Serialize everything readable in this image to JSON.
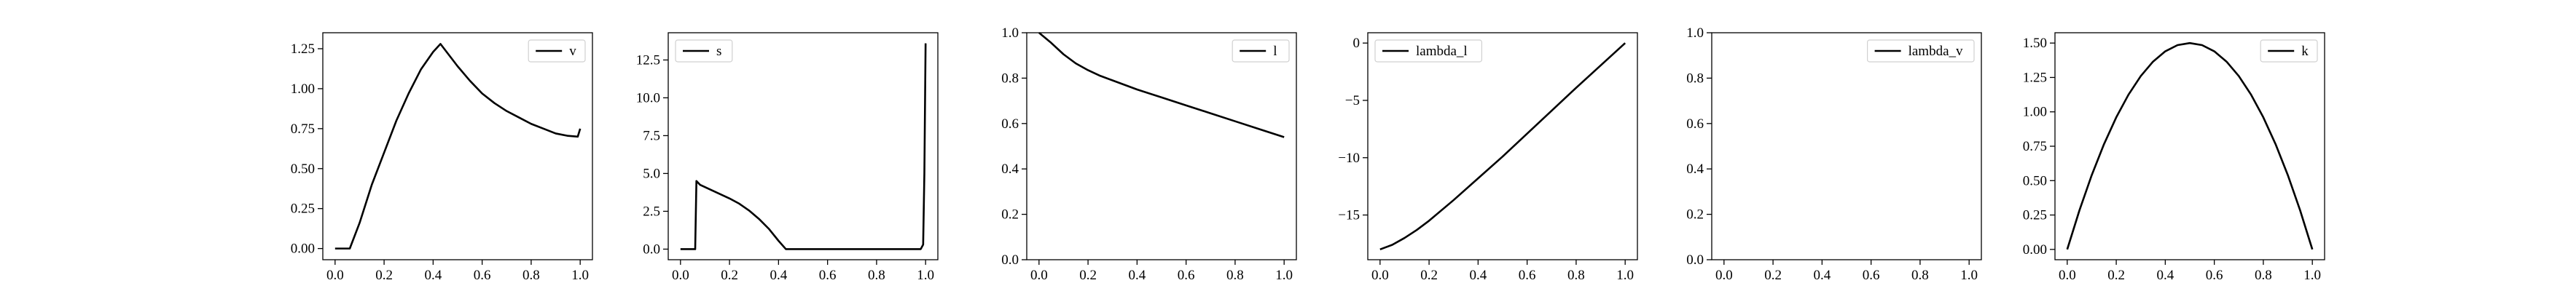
{
  "chart_data": [
    {
      "type": "line",
      "xlim": [
        -0.05,
        1.05
      ],
      "ylim": [
        -0.07,
        1.35
      ],
      "xticks": [
        {
          "v": 0,
          "label": "0.0"
        },
        {
          "v": 0.2,
          "label": "0.2"
        },
        {
          "v": 0.4,
          "label": "0.4"
        },
        {
          "v": 0.6,
          "label": "0.6"
        },
        {
          "v": 0.8,
          "label": "0.8"
        },
        {
          "v": 1.0,
          "label": "1.0"
        }
      ],
      "yticks": [
        {
          "v": 0,
          "label": "0.00"
        },
        {
          "v": 0.25,
          "label": "0.25"
        },
        {
          "v": 0.5,
          "label": "0.50"
        },
        {
          "v": 0.75,
          "label": "0.75"
        },
        {
          "v": 1.0,
          "label": "1.00"
        },
        {
          "v": 1.25,
          "label": "1.25"
        }
      ],
      "legend_placement": "top-right",
      "grid": false,
      "series": [
        {
          "name": "v",
          "color": "#000000",
          "x": [
            0.0,
            0.06,
            0.1,
            0.15,
            0.2,
            0.25,
            0.3,
            0.35,
            0.4,
            0.43,
            0.5,
            0.55,
            0.6,
            0.65,
            0.7,
            0.75,
            0.8,
            0.85,
            0.9,
            0.95,
            0.99,
            1.0
          ],
          "y": [
            0.0,
            0.0,
            0.16,
            0.4,
            0.6,
            0.8,
            0.97,
            1.12,
            1.23,
            1.28,
            1.14,
            1.05,
            0.97,
            0.91,
            0.86,
            0.82,
            0.78,
            0.75,
            0.72,
            0.705,
            0.7,
            0.75
          ]
        }
      ]
    },
    {
      "type": "line",
      "xlim": [
        -0.05,
        1.05
      ],
      "ylim": [
        -0.7,
        14.3
      ],
      "xticks": [
        {
          "v": 0,
          "label": "0.0"
        },
        {
          "v": 0.2,
          "label": "0.2"
        },
        {
          "v": 0.4,
          "label": "0.4"
        },
        {
          "v": 0.6,
          "label": "0.6"
        },
        {
          "v": 0.8,
          "label": "0.8"
        },
        {
          "v": 1.0,
          "label": "1.0"
        }
      ],
      "yticks": [
        {
          "v": 0,
          "label": "0.0"
        },
        {
          "v": 2.5,
          "label": "2.5"
        },
        {
          "v": 5,
          "label": "5.0"
        },
        {
          "v": 7.5,
          "label": "7.5"
        },
        {
          "v": 10,
          "label": "10.0"
        },
        {
          "v": 12.5,
          "label": "12.5"
        }
      ],
      "legend_placement": "top-left",
      "grid": false,
      "series": [
        {
          "name": "s",
          "color": "#000000",
          "x": [
            0.0,
            0.06,
            0.065,
            0.08,
            0.12,
            0.16,
            0.2,
            0.24,
            0.28,
            0.32,
            0.36,
            0.4,
            0.43,
            0.5,
            0.6,
            0.7,
            0.8,
            0.9,
            0.98,
            0.99,
            0.995,
            1.0
          ],
          "y": [
            0.0,
            0.0,
            4.5,
            4.25,
            3.95,
            3.65,
            3.35,
            3.0,
            2.55,
            2.0,
            1.35,
            0.55,
            0.0,
            0.0,
            0.0,
            0.0,
            0.0,
            0.0,
            0.0,
            0.3,
            5.0,
            13.6
          ]
        }
      ]
    },
    {
      "type": "line",
      "xlim": [
        -0.05,
        1.05
      ],
      "ylim": [
        0.0,
        1.0
      ],
      "xticks": [
        {
          "v": 0,
          "label": "0.0"
        },
        {
          "v": 0.2,
          "label": "0.2"
        },
        {
          "v": 0.4,
          "label": "0.4"
        },
        {
          "v": 0.6,
          "label": "0.6"
        },
        {
          "v": 0.8,
          "label": "0.8"
        },
        {
          "v": 1.0,
          "label": "1.0"
        }
      ],
      "yticks": [
        {
          "v": 0,
          "label": "0.0"
        },
        {
          "v": 0.2,
          "label": "0.2"
        },
        {
          "v": 0.4,
          "label": "0.4"
        },
        {
          "v": 0.6,
          "label": "0.6"
        },
        {
          "v": 0.8,
          "label": "0.8"
        },
        {
          "v": 1.0,
          "label": "1.0"
        }
      ],
      "legend_placement": "top-right",
      "grid": false,
      "series": [
        {
          "name": "l",
          "color": "#000000",
          "x": [
            0.0,
            0.05,
            0.1,
            0.15,
            0.2,
            0.25,
            0.3,
            0.35,
            0.4,
            0.5,
            0.6,
            0.7,
            0.8,
            0.9,
            1.0
          ],
          "y": [
            1.0,
            0.955,
            0.905,
            0.865,
            0.835,
            0.81,
            0.79,
            0.77,
            0.75,
            0.715,
            0.68,
            0.645,
            0.61,
            0.575,
            0.54
          ]
        }
      ]
    },
    {
      "type": "line",
      "xlim": [
        -0.05,
        1.05
      ],
      "ylim": [
        -18.9,
        0.9
      ],
      "xticks": [
        {
          "v": 0,
          "label": "0.0"
        },
        {
          "v": 0.2,
          "label": "0.2"
        },
        {
          "v": 0.4,
          "label": "0.4"
        },
        {
          "v": 0.6,
          "label": "0.6"
        },
        {
          "v": 0.8,
          "label": "0.8"
        },
        {
          "v": 1.0,
          "label": "1.0"
        }
      ],
      "yticks": [
        {
          "v": -15,
          "label": "−15"
        },
        {
          "v": -10,
          "label": "−10"
        },
        {
          "v": -5,
          "label": "−5"
        },
        {
          "v": 0,
          "label": "0"
        }
      ],
      "legend_placement": "top-left",
      "grid": false,
      "series": [
        {
          "name": "lambda_l",
          "color": "#000000",
          "x": [
            0.0,
            0.05,
            0.1,
            0.15,
            0.2,
            0.3,
            0.4,
            0.5,
            0.6,
            0.7,
            0.8,
            0.9,
            1.0
          ],
          "y": [
            -18.0,
            -17.6,
            -17.0,
            -16.3,
            -15.5,
            -13.7,
            -11.8,
            -9.9,
            -7.9,
            -5.9,
            -3.9,
            -1.95,
            0.0
          ]
        }
      ]
    },
    {
      "type": "line",
      "xlim": [
        -0.05,
        1.05
      ],
      "ylim": [
        0.0,
        1.0
      ],
      "xticks": [
        {
          "v": 0,
          "label": "0.0"
        },
        {
          "v": 0.2,
          "label": "0.2"
        },
        {
          "v": 0.4,
          "label": "0.4"
        },
        {
          "v": 0.6,
          "label": "0.6"
        },
        {
          "v": 0.8,
          "label": "0.8"
        },
        {
          "v": 1.0,
          "label": "1.0"
        }
      ],
      "yticks": [
        {
          "v": 0,
          "label": "0.0"
        },
        {
          "v": 0.2,
          "label": "0.2"
        },
        {
          "v": 0.4,
          "label": "0.4"
        },
        {
          "v": 0.6,
          "label": "0.6"
        },
        {
          "v": 0.8,
          "label": "0.8"
        },
        {
          "v": 1.0,
          "label": "1.0"
        }
      ],
      "legend_placement": "top-right",
      "grid": false,
      "series": [
        {
          "name": "lambda_v",
          "color": "#000000",
          "x": [],
          "y": []
        }
      ]
    },
    {
      "type": "line",
      "xlim": [
        -0.05,
        1.05
      ],
      "ylim": [
        -0.075,
        1.575
      ],
      "xticks": [
        {
          "v": 0,
          "label": "0.0"
        },
        {
          "v": 0.2,
          "label": "0.2"
        },
        {
          "v": 0.4,
          "label": "0.4"
        },
        {
          "v": 0.6,
          "label": "0.6"
        },
        {
          "v": 0.8,
          "label": "0.8"
        },
        {
          "v": 1.0,
          "label": "1.0"
        }
      ],
      "yticks": [
        {
          "v": 0,
          "label": "0.00"
        },
        {
          "v": 0.25,
          "label": "0.25"
        },
        {
          "v": 0.5,
          "label": "0.50"
        },
        {
          "v": 0.75,
          "label": "0.75"
        },
        {
          "v": 1.0,
          "label": "1.00"
        },
        {
          "v": 1.25,
          "label": "1.25"
        },
        {
          "v": 1.5,
          "label": "1.50"
        }
      ],
      "legend_placement": "top-right",
      "grid": false,
      "series": [
        {
          "name": "k",
          "color": "#000000",
          "x": [
            0.0,
            0.05,
            0.1,
            0.15,
            0.2,
            0.25,
            0.3,
            0.35,
            0.4,
            0.45,
            0.5,
            0.55,
            0.6,
            0.65,
            0.7,
            0.75,
            0.8,
            0.85,
            0.9,
            0.95,
            1.0
          ],
          "y": [
            0.0,
            0.285,
            0.54,
            0.765,
            0.96,
            1.125,
            1.26,
            1.365,
            1.44,
            1.485,
            1.5,
            1.485,
            1.44,
            1.365,
            1.26,
            1.125,
            0.96,
            0.765,
            0.54,
            0.285,
            0.0
          ]
        }
      ]
    }
  ]
}
